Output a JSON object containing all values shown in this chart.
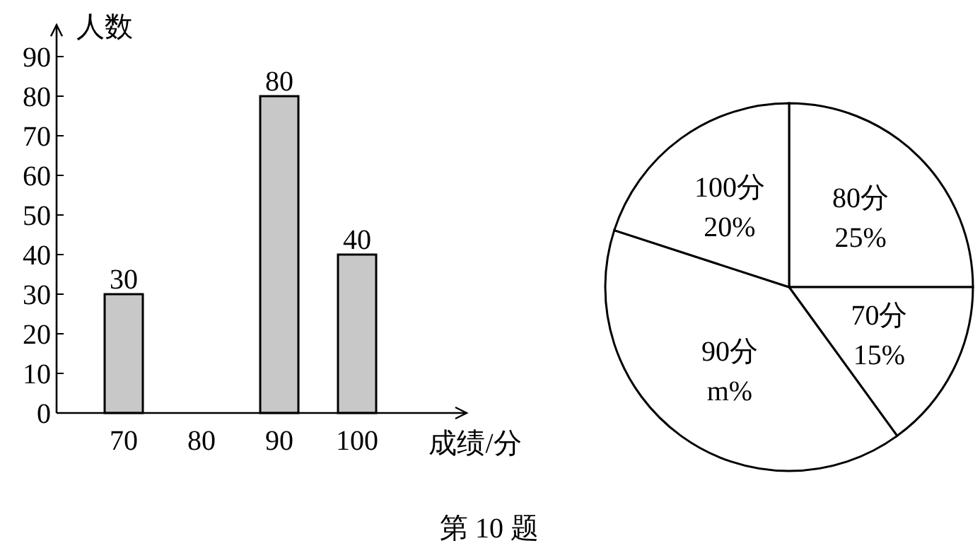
{
  "chart_data": [
    {
      "type": "bar",
      "xlabel": "成绩/分",
      "ylabel": "人数",
      "categories": [
        "70",
        "80",
        "90",
        "100"
      ],
      "values": [
        30,
        null,
        80,
        40
      ],
      "color": "#c8c8c8",
      "ylim": [
        0,
        98
      ],
      "yticks": [
        0,
        10,
        20,
        30,
        40,
        50,
        60,
        70,
        80,
        90
      ],
      "data_labels": true,
      "annotations": [
        "第 10 题"
      ]
    },
    {
      "type": "pie",
      "categories": [
        "80分",
        "70分",
        "90分",
        "100分"
      ],
      "values": [
        25,
        15,
        40,
        20
      ],
      "value_labels": [
        "25%",
        "15%",
        "m%",
        "20%"
      ],
      "colors": [
        "#ffffff",
        "#ffffff",
        "#ffffff",
        "#ffffff"
      ]
    }
  ]
}
